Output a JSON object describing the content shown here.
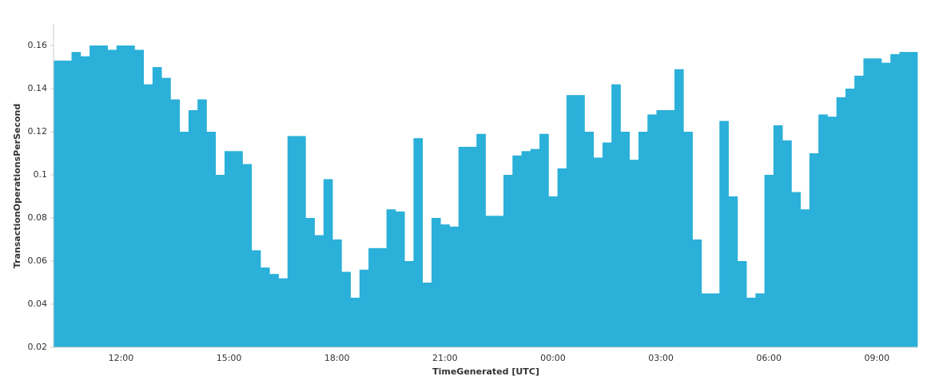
{
  "chart_data": {
    "type": "bar",
    "x_label": "TimeGenerated [UTC]",
    "y_label": "TransactionOperationsPerSecond",
    "color": "#2bb0d9",
    "categories": [
      null,
      null,
      null,
      null,
      null,
      null,
      null,
      "12:00",
      null,
      null,
      null,
      null,
      null,
      null,
      null,
      null,
      null,
      null,
      null,
      "15:00",
      null,
      null,
      null,
      null,
      null,
      null,
      null,
      null,
      null,
      null,
      null,
      "18:00",
      null,
      null,
      null,
      null,
      null,
      null,
      null,
      null,
      null,
      null,
      null,
      "21:00",
      null,
      null,
      null,
      null,
      null,
      null,
      null,
      null,
      null,
      null,
      null,
      "00:00",
      null,
      null,
      null,
      null,
      null,
      null,
      null,
      null,
      null,
      null,
      null,
      "03:00",
      null,
      null,
      null,
      null,
      null,
      null,
      null,
      null,
      null,
      null,
      null,
      "06:00",
      null,
      null,
      null,
      null,
      null,
      null,
      null,
      null,
      null,
      null,
      null,
      "09:00",
      null,
      null,
      null,
      null
    ],
    "values": [
      0.153,
      0.153,
      0.157,
      0.155,
      0.16,
      0.16,
      0.158,
      0.16,
      0.16,
      0.158,
      0.142,
      0.15,
      0.145,
      0.135,
      0.12,
      0.13,
      0.135,
      0.12,
      0.1,
      0.111,
      0.111,
      0.105,
      0.065,
      0.057,
      0.054,
      0.052,
      0.118,
      0.118,
      0.08,
      0.072,
      0.098,
      0.07,
      0.055,
      0.043,
      0.056,
      0.066,
      0.066,
      0.084,
      0.083,
      0.06,
      0.117,
      0.05,
      0.08,
      0.077,
      0.076,
      0.113,
      0.113,
      0.119,
      0.081,
      0.081,
      0.1,
      0.109,
      0.111,
      0.112,
      0.119,
      0.09,
      0.103,
      0.137,
      0.137,
      0.12,
      0.108,
      0.115,
      0.142,
      0.12,
      0.107,
      0.12,
      0.128,
      0.13,
      0.13,
      0.149,
      0.12,
      0.07,
      0.045,
      0.045,
      0.125,
      0.09,
      0.06,
      0.043,
      0.045,
      0.1,
      0.123,
      0.116,
      0.092,
      0.084,
      0.11,
      0.128,
      0.127,
      0.136,
      0.14,
      0.146,
      0.154,
      0.154,
      0.152,
      0.156,
      0.157,
      0.157
    ],
    "ylim": [
      0.02,
      0.17
    ],
    "yticks": [
      0.02,
      0.04,
      0.06,
      0.08,
      0.1,
      0.12,
      0.14,
      0.16
    ]
  }
}
